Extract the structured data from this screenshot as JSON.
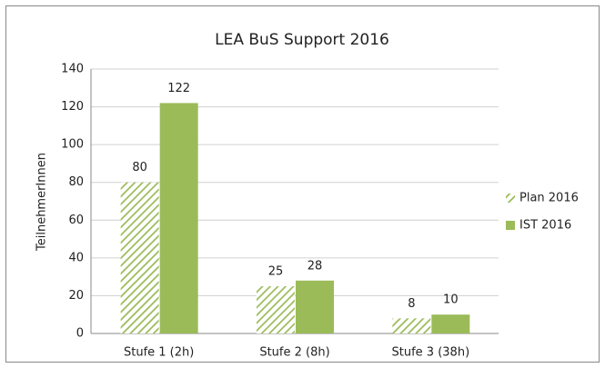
{
  "chart_data": {
    "type": "bar",
    "title": "LEA BuS Support 2016",
    "y_label": "TeilnehmerInnen",
    "categories": [
      "Stufe 1 (2h)",
      "Stufe 2 (8h)",
      "Stufe 3 (38h)"
    ],
    "series": [
      {
        "name": "Plan 2016",
        "color": "#9bbb59",
        "hatch": true,
        "values": [
          80,
          25,
          8
        ]
      },
      {
        "name": "IST 2016",
        "color": "#9bbb59",
        "hatch": false,
        "values": [
          122,
          28,
          10
        ]
      }
    ],
    "ylim": [
      0,
      140
    ],
    "yticks": [
      0,
      20,
      40,
      60,
      80,
      100,
      120,
      140
    ],
    "grid": true,
    "legend": "right"
  }
}
